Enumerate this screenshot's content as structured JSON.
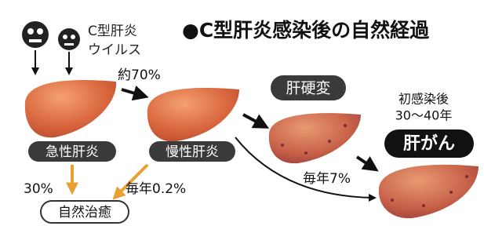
{
  "header": {
    "title": "●C型肝炎感染後の自然経過"
  },
  "virus": {
    "label": [
      "C型肝炎",
      "ウイルス"
    ]
  },
  "nodes": [
    {
      "label": "急性肝炎"
    },
    {
      "label": "慢性肝炎"
    },
    {
      "label": "肝硬変"
    },
    {
      "label": "肝がん",
      "note": [
        "初感染後",
        "30〜40年"
      ]
    },
    {
      "label": "自然治癒"
    }
  ],
  "edges": [
    {
      "label": "約70%"
    },
    {
      "label": "30%"
    },
    {
      "label": "毎年0.2%"
    },
    {
      "label": "毎年7%"
    }
  ]
}
